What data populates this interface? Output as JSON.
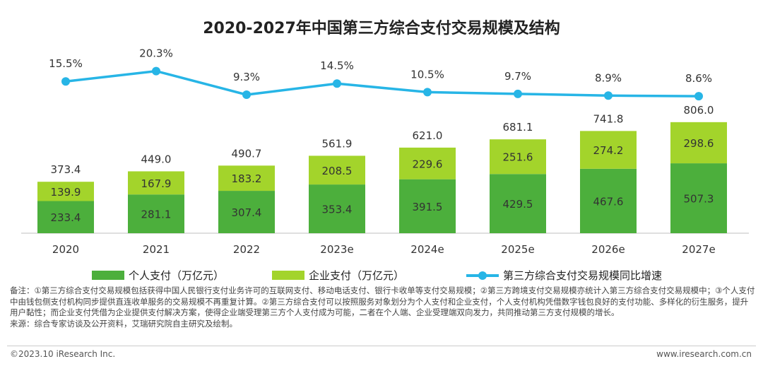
{
  "chart_data": {
    "type": "bar",
    "stacked": true,
    "title": "2020-2027年中国第三方综合支付交易规模及结构",
    "categories": [
      "2020",
      "2021",
      "2022",
      "2023e",
      "2024e",
      "2025e",
      "2026e",
      "2027e"
    ],
    "series": [
      {
        "name": "个人支付（万亿元）",
        "color": "#4caf3c",
        "values": [
          233.4,
          281.1,
          307.4,
          353.4,
          391.5,
          429.5,
          467.6,
          507.3
        ]
      },
      {
        "name": "企业支付（万亿元）",
        "color": "#a3d42b",
        "values": [
          139.9,
          167.9,
          183.2,
          208.5,
          229.6,
          251.6,
          274.2,
          298.6
        ]
      }
    ],
    "totals": [
      373.4,
      449.0,
      490.7,
      561.9,
      621.0,
      681.1,
      741.8,
      806.0
    ],
    "line": {
      "name": "第三方综合支付交易规模同比增速",
      "color": "#27b5e6",
      "values": [
        15.5,
        20.3,
        9.3,
        14.5,
        10.5,
        9.7,
        8.9,
        8.6
      ]
    },
    "ylim": [
      0,
      900
    ],
    "xlabel": "",
    "ylabel": ""
  },
  "notes": {
    "line1": "备注：①第三方综合支付交易规模包括获得中国人民银行支付业务许可的互联网支付、移动电话支付、银行卡收单等支付交易规模；②第三方跨境支付交易规模亦统计入第三方综合支付交易规模中；③个人支付中由钱包侧支付机构同步提供直连收单服务的交易规模不再重复计算。②第三方综合支付可以按照服务对象划分为个人支付和企业支付，个人支付机构凭借数字钱包良好的支付功能、多样化的衍生服务，提升用户黏性；而企业支付凭借为企业提供支付解决方案，使得企业端受理第三方个人支付成为可能，二者在个人端、企业受理端双向发力，共同推动第三方支付规模的增长。",
    "source": "来源：综合专家访谈及公开资料，艾瑞研究院自主研究及绘制。"
  },
  "footer": {
    "copyright": "©2023.10 iResearch Inc.",
    "website": "www.iresearch.com.cn"
  }
}
